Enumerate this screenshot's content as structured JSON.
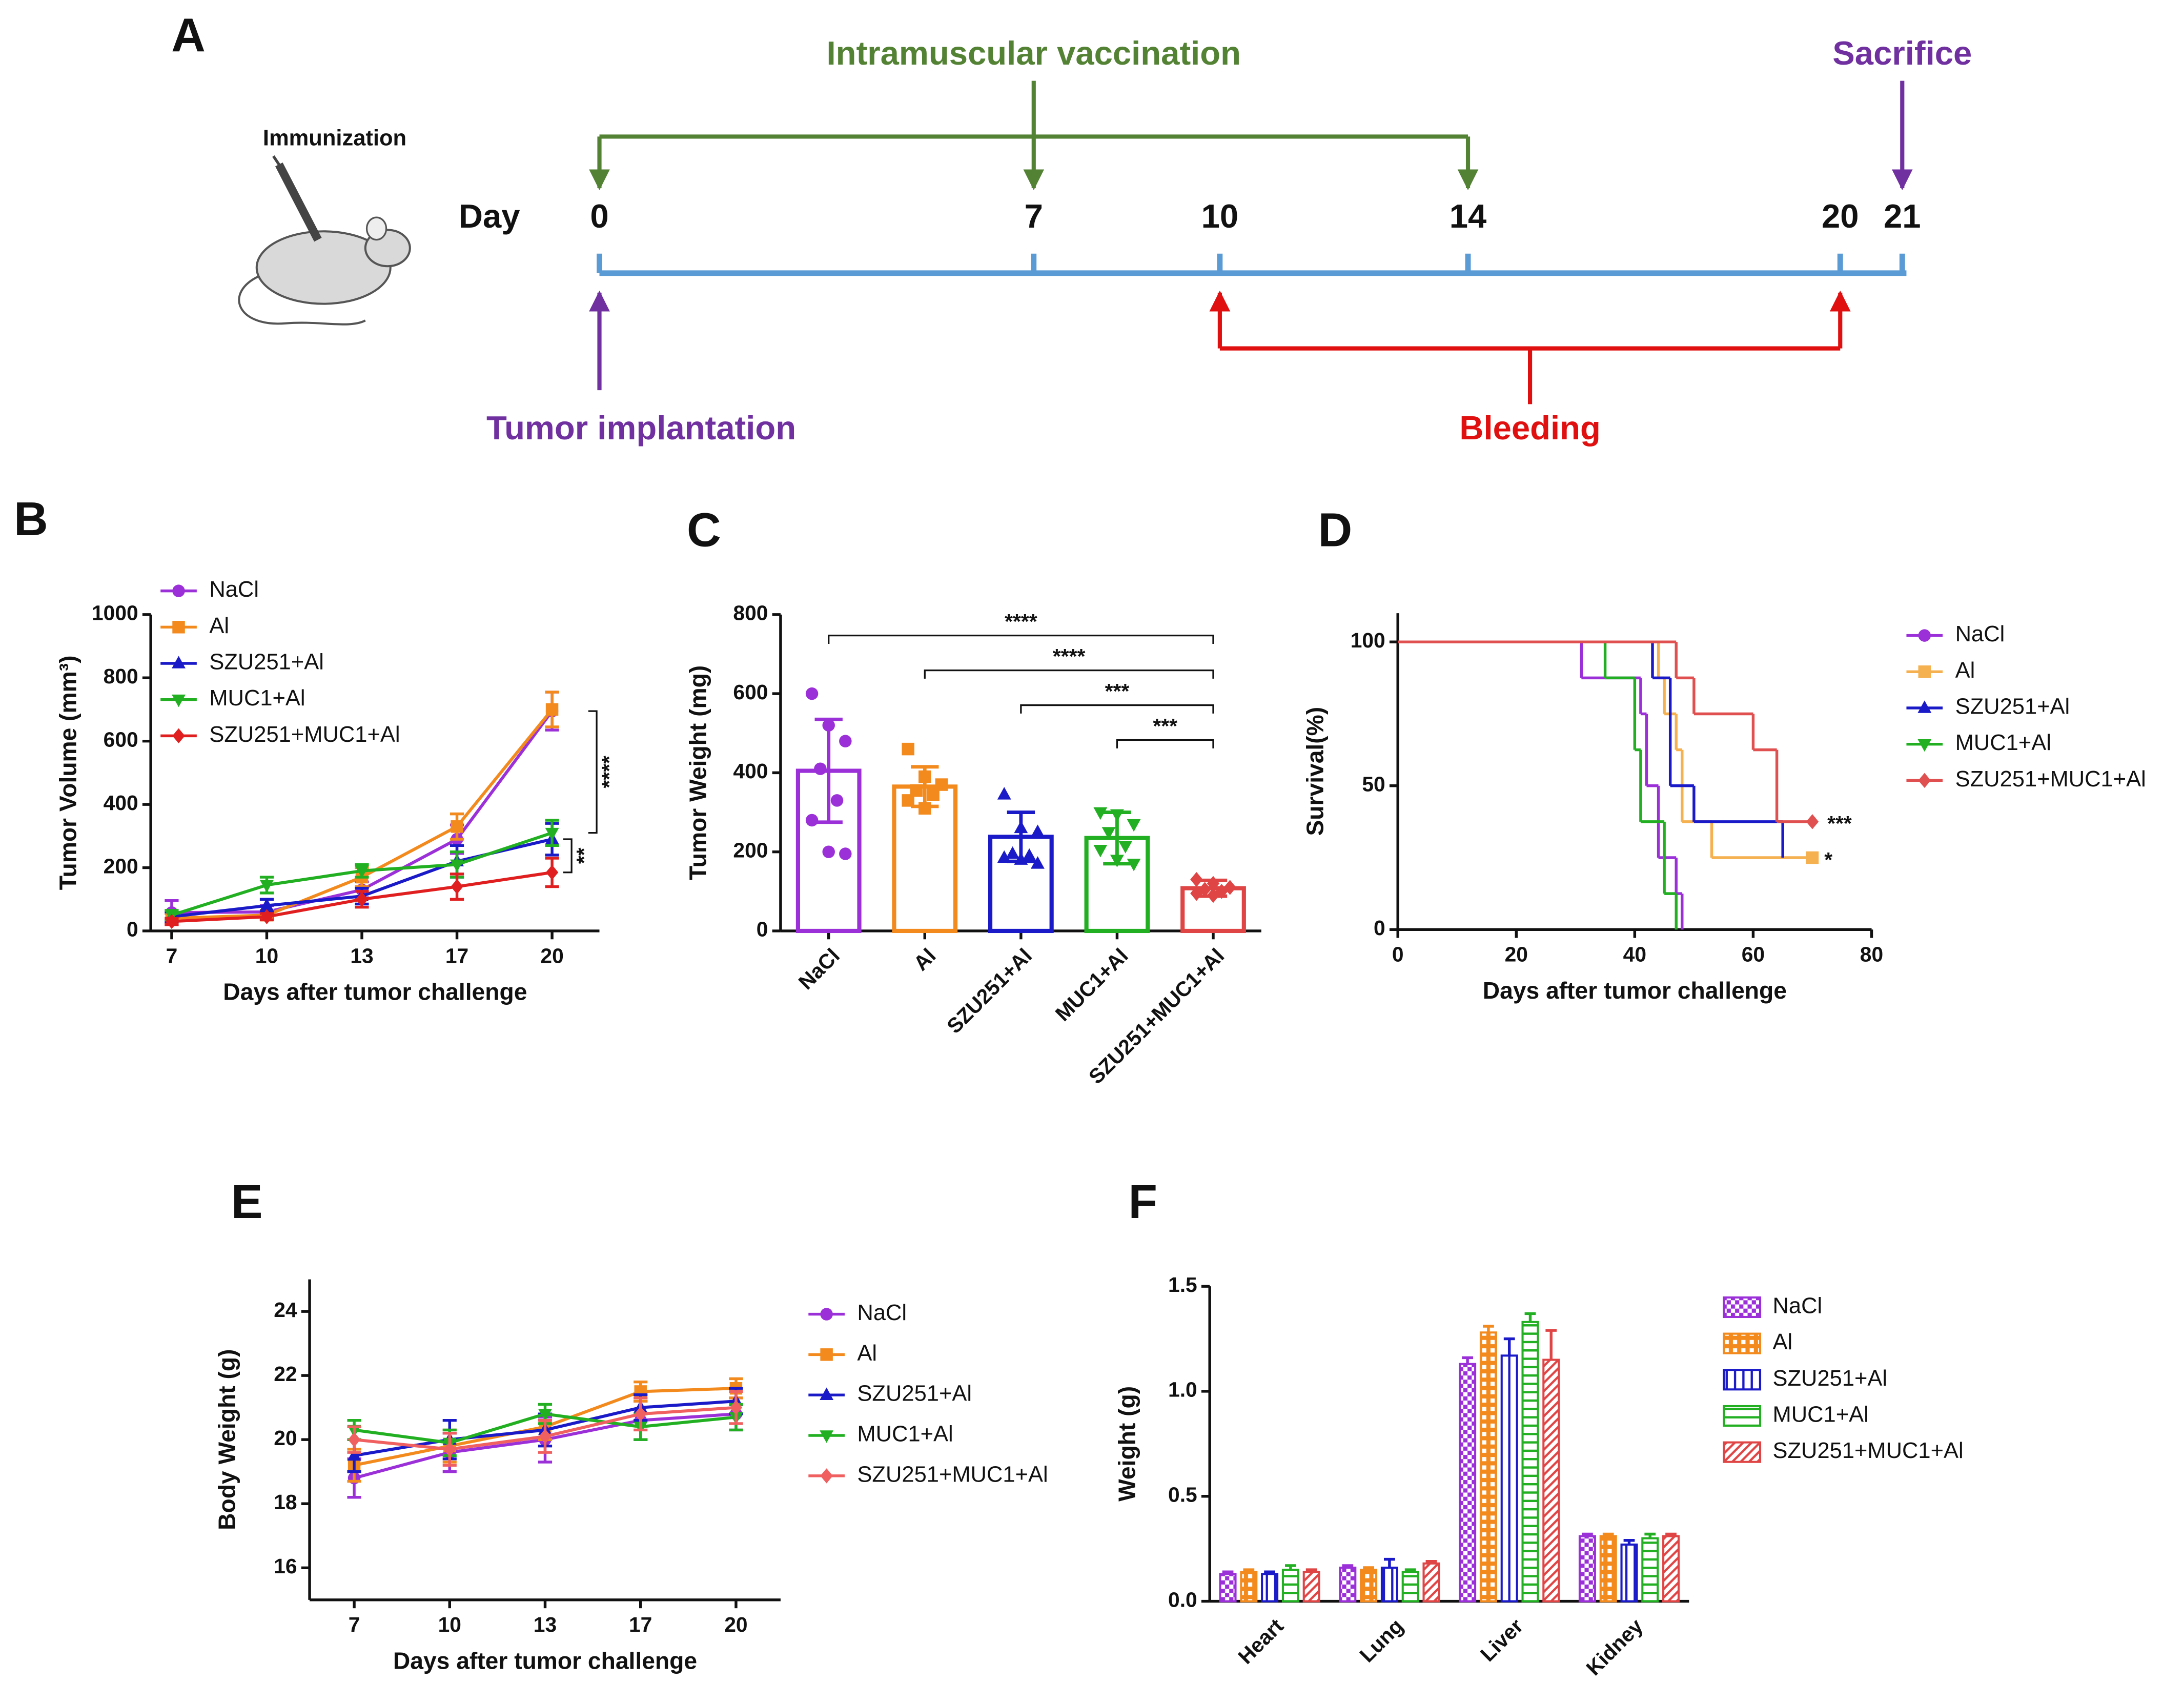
{
  "timeline": {
    "panel": "A",
    "icon_label": "Immunization",
    "axis_label": "Day",
    "days": [
      0,
      7,
      10,
      14,
      20,
      21
    ],
    "axis_color": "#5b9bd5",
    "events": [
      {
        "label": "Intramuscular vaccination",
        "days": [
          0,
          7,
          14
        ],
        "side": "above",
        "color": "#548235"
      },
      {
        "label": "Sacrifice",
        "days": [
          21
        ],
        "side": "above",
        "color": "#7030a0"
      },
      {
        "label": "Tumor implantation",
        "days": [
          0
        ],
        "side": "below",
        "color": "#7030a0"
      },
      {
        "label": "Bleeding",
        "days": [
          10,
          20
        ],
        "side": "below",
        "color": "#e01010"
      }
    ]
  },
  "chart_data": [
    {
      "panel": "B",
      "type": "line",
      "ylabel": "Tumor Volume (mm³)",
      "xlabel": "Days after tumor challenge",
      "categories": [
        "7",
        "10",
        "13",
        "17",
        "20"
      ],
      "ylim": [
        0,
        1000
      ],
      "yticks": [
        0,
        200,
        400,
        600,
        800,
        1000
      ],
      "series": [
        {
          "name": "NaCl",
          "color": "#9b30d9",
          "marker": "circle",
          "values": [
            58,
            60,
            130,
            290,
            695
          ],
          "errors": [
            38,
            20,
            25,
            45,
            60
          ]
        },
        {
          "name": "Al",
          "color": "#f28a1e",
          "marker": "square",
          "values": [
            40,
            50,
            170,
            330,
            700
          ],
          "errors": [
            15,
            15,
            30,
            40,
            55
          ]
        },
        {
          "name": "SZU251+Al",
          "color": "#1a1ac8",
          "marker": "triangle-up",
          "values": [
            45,
            80,
            110,
            220,
            290
          ],
          "errors": [
            15,
            20,
            25,
            50,
            50
          ]
        },
        {
          "name": "MUC1+Al",
          "color": "#22b022",
          "marker": "triangle-down",
          "values": [
            50,
            145,
            190,
            210,
            310
          ],
          "errors": [
            15,
            25,
            20,
            40,
            40
          ]
        },
        {
          "name": "SZU251+MUC1+Al",
          "color": "#e02020",
          "marker": "diamond",
          "values": [
            30,
            45,
            100,
            140,
            185
          ],
          "errors": [
            10,
            10,
            25,
            40,
            45
          ]
        }
      ],
      "annotations": [
        "****",
        "**"
      ]
    },
    {
      "panel": "C",
      "type": "bar",
      "ylabel": "Tumor Weight (mg)",
      "categories": [
        "NaCl",
        "Al",
        "SZU251+Al",
        "MUC1+Al",
        "SZU251+MUC1+Al"
      ],
      "values": [
        405,
        365,
        238,
        235,
        108
      ],
      "errors": [
        130,
        50,
        62,
        65,
        20
      ],
      "colors": [
        "#9b30d9",
        "#f28a1e",
        "#1a1ac8",
        "#22b022",
        "#e04545"
      ],
      "markers": [
        "circle",
        "square",
        "triangle-up",
        "triangle-down",
        "diamond"
      ],
      "points": [
        [
          600,
          520,
          480,
          410,
          330,
          280,
          200,
          195
        ],
        [
          460,
          390,
          370,
          355,
          345,
          330,
          310
        ],
        [
          345,
          260,
          250,
          195,
          190,
          185,
          180,
          170
        ],
        [
          300,
          295,
          270,
          250,
          215,
          205,
          180,
          170
        ],
        [
          130,
          120,
          110,
          105,
          100,
          95,
          90
        ]
      ],
      "ylim": [
        0,
        800
      ],
      "yticks": [
        0,
        200,
        400,
        600,
        800
      ],
      "annotations": [
        "****",
        "****",
        "***",
        "***"
      ]
    },
    {
      "panel": "D",
      "type": "step",
      "ylabel": "Survival(%)",
      "xlabel": "Days after tumor challenge",
      "xlim": [
        0,
        80
      ],
      "xticks": [
        0,
        20,
        40,
        60,
        80
      ],
      "ylim": [
        0,
        110
      ],
      "yticks": [
        0,
        50,
        100
      ],
      "series": [
        {
          "name": "NaCl",
          "color": "#9b30d9",
          "marker": "circle",
          "x": [
            0,
            31,
            41,
            42,
            44,
            47,
            48
          ],
          "values": [
            100,
            87.5,
            75,
            50,
            25,
            12.5,
            0
          ]
        },
        {
          "name": "Al",
          "color": "#f5b050",
          "marker": "square",
          "x": [
            0,
            44,
            45,
            47,
            48,
            53,
            70
          ],
          "values": [
            100,
            87.5,
            75,
            62.5,
            37.5,
            25,
            25
          ]
        },
        {
          "name": "SZU251+Al",
          "color": "#1a1ac8",
          "marker": "triangle-up",
          "x": [
            0,
            43,
            46,
            50,
            65
          ],
          "values": [
            100,
            87.5,
            50,
            37.5,
            25
          ]
        },
        {
          "name": "MUC1+Al",
          "color": "#22b022",
          "marker": "triangle-down",
          "x": [
            0,
            35,
            40,
            41,
            45,
            47
          ],
          "values": [
            100,
            87.5,
            62.5,
            37.5,
            12.5,
            0
          ]
        },
        {
          "name": "SZU251+MUC1+Al",
          "color": "#e05050",
          "marker": "diamond",
          "x": [
            0,
            47,
            50,
            60,
            64,
            70
          ],
          "values": [
            100,
            87.5,
            75,
            62.5,
            37.5,
            37.5
          ]
        }
      ],
      "annotations": [
        "***",
        "*"
      ]
    },
    {
      "panel": "E",
      "type": "line",
      "ylabel": "Body Weight (g)",
      "xlabel": "Days after tumor challenge",
      "categories": [
        "7",
        "10",
        "13",
        "17",
        "20"
      ],
      "ylim": [
        15,
        25
      ],
      "yticks": [
        16,
        18,
        20,
        22,
        24
      ],
      "series": [
        {
          "name": "NaCl",
          "color": "#9b30d9",
          "marker": "circle",
          "values": [
            18.8,
            19.6,
            20.0,
            20.6,
            20.8
          ],
          "errors": [
            0.6,
            0.6,
            0.7,
            0.6,
            0.5
          ]
        },
        {
          "name": "Al",
          "color": "#f28a1e",
          "marker": "square",
          "values": [
            19.2,
            19.8,
            20.4,
            21.5,
            21.6
          ],
          "errors": [
            0.5,
            0.5,
            0.4,
            0.3,
            0.3
          ]
        },
        {
          "name": "SZU251+Al",
          "color": "#1a1ac8",
          "marker": "triangle-up",
          "values": [
            19.5,
            20.0,
            20.3,
            21.0,
            21.2
          ],
          "errors": [
            0.5,
            0.6,
            0.5,
            0.4,
            0.4
          ]
        },
        {
          "name": "MUC1+Al",
          "color": "#22b022",
          "marker": "triangle-down",
          "values": [
            20.3,
            19.9,
            20.8,
            20.4,
            20.7
          ],
          "errors": [
            0.3,
            0.4,
            0.3,
            0.4,
            0.4
          ]
        },
        {
          "name": "SZU251+MUC1+Al",
          "color": "#f06060",
          "marker": "diamond",
          "values": [
            20.0,
            19.7,
            20.1,
            20.8,
            21.0
          ],
          "errors": [
            0.4,
            0.5,
            0.5,
            0.5,
            0.5
          ]
        }
      ]
    },
    {
      "panel": "F",
      "type": "grouped_bar",
      "ylabel": "Weight (g)",
      "categories": [
        "Heart",
        "Lung",
        "Liver",
        "Kidney"
      ],
      "ylim": [
        0,
        1.5
      ],
      "yticks": [
        {
          "value": 0,
          "label": "0.0"
        },
        0.5,
        {
          "value": 1,
          "label": "1.0"
        },
        1.5
      ],
      "series": [
        {
          "name": "NaCl",
          "color": "#9b30d9",
          "hatch": "checker",
          "values": [
            0.13,
            0.16,
            1.13,
            0.31
          ],
          "errors": [
            0.01,
            0.01,
            0.03,
            0.01
          ]
        },
        {
          "name": "Al",
          "color": "#f28a1e",
          "hatch": "dots",
          "values": [
            0.14,
            0.15,
            1.28,
            0.31
          ],
          "errors": [
            0.01,
            0.01,
            0.03,
            0.01
          ]
        },
        {
          "name": "SZU251+Al",
          "color": "#1a1ac8",
          "hatch": "vertical",
          "values": [
            0.13,
            0.16,
            1.17,
            0.27
          ],
          "errors": [
            0.01,
            0.04,
            0.08,
            0.02
          ]
        },
        {
          "name": "MUC1+Al",
          "color": "#22b022",
          "hatch": "horizontal",
          "values": [
            0.15,
            0.14,
            1.33,
            0.3
          ],
          "errors": [
            0.02,
            0.01,
            0.04,
            0.02
          ]
        },
        {
          "name": "SZU251+MUC1+Al",
          "color": "#e04545",
          "hatch": "diagonal",
          "values": [
            0.14,
            0.18,
            1.15,
            0.31
          ],
          "errors": [
            0.01,
            0.01,
            0.14,
            0.01
          ]
        }
      ]
    }
  ]
}
